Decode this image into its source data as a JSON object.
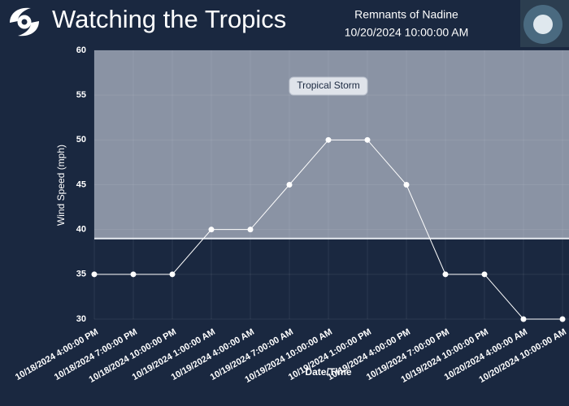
{
  "header": {
    "title": "Watching the Tropics",
    "storm": "Remnants of Nadine",
    "datetime": "10/20/2024 10:00:00 AM"
  },
  "chart_data": {
    "type": "line",
    "x_label": "Date/Time",
    "y_label": "Wind Speed (mph)",
    "categories": [
      "10/18/2024 4:00:00 PM",
      "10/18/2024 7:00:00 PM",
      "10/18/2024 10:00:00 PM",
      "10/19/2024 1:00:00 AM",
      "10/19/2024 4:00:00 AM",
      "10/19/2024 7:00:00 AM",
      "10/19/2024 10:00:00 AM",
      "10/19/2024 1:00:00 PM",
      "10/19/2024 4:00:00 PM",
      "10/19/2024 7:00:00 PM",
      "10/19/2024 10:00:00 PM",
      "10/20/2024 4:00:00 AM",
      "10/20/2024 10:00:00 AM"
    ],
    "values": [
      35,
      35,
      35,
      40,
      40,
      45,
      50,
      50,
      45,
      35,
      35,
      30,
      30
    ],
    "color": "#ffffff",
    "ylim": [
      30,
      60
    ],
    "yticks": [
      30,
      35,
      40,
      45,
      50,
      55,
      60
    ],
    "grid": true,
    "bands": [
      {
        "from": 39,
        "to": 60,
        "label": "Tropical Storm",
        "color": "#8a93a4"
      }
    ]
  }
}
